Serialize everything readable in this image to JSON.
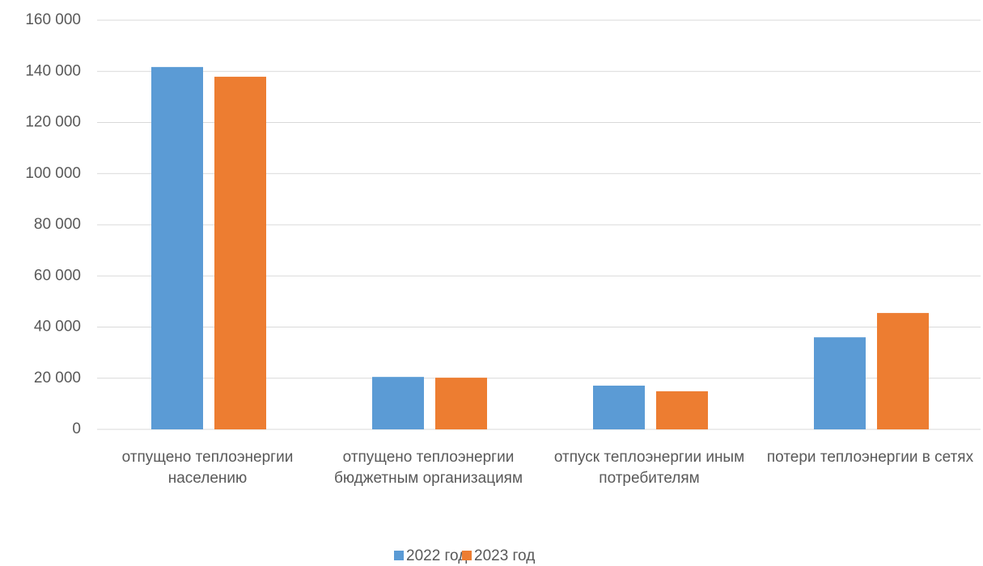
{
  "chart_data": {
    "type": "bar",
    "categories": [
      "отпущено теплоэнергии населению",
      "отпущено теплоэнергии бюджетным организациям",
      "отпуск теплоэнергии иным потребителям",
      "потери теплоэнергии в сетях"
    ],
    "series": [
      {
        "name": "2022 год",
        "color": "#5b9bd5",
        "values": [
          141700,
          20500,
          17100,
          36000
        ]
      },
      {
        "name": "2023 год",
        "color": "#ed7d31",
        "values": [
          137900,
          20200,
          14900,
          45500
        ]
      }
    ],
    "ylim": [
      0,
      160000
    ],
    "yticks": [
      0,
      {
        "value": 20000,
        "label": "20 000"
      },
      {
        "value": 40000,
        "label": "40 000"
      },
      {
        "value": 60000,
        "label": "60 000"
      },
      {
        "value": 80000,
        "label": "80 000"
      },
      {
        "value": 100000,
        "label": "100 000"
      },
      {
        "value": 120000,
        "label": "120 000"
      },
      {
        "value": 140000,
        "label": "140 000"
      },
      {
        "value": 160000,
        "label": "160 000"
      }
    ],
    "grid": true,
    "legend": "bottom"
  }
}
